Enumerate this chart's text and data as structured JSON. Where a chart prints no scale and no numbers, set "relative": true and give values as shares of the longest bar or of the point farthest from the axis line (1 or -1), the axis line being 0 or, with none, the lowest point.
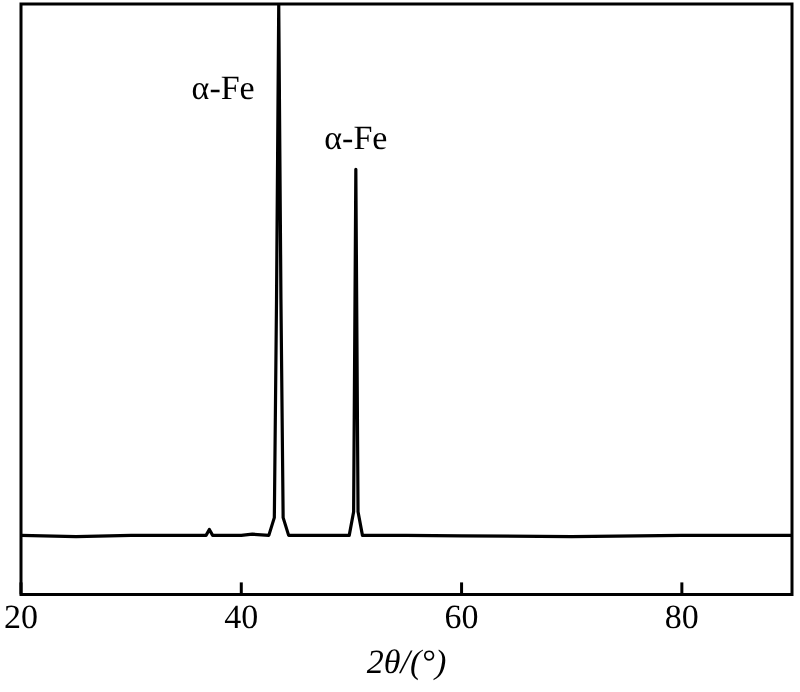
{
  "chart_data": {
    "type": "line",
    "relative": true,
    "xlabel": "2θ/(°)",
    "xlim": [
      20,
      90
    ],
    "xticks": [
      20,
      40,
      60,
      80
    ],
    "grid": false,
    "legend": false,
    "marker": "none",
    "line_style": "solid",
    "series": [
      {
        "color": "#000000",
        "x": [
          20,
          25,
          30,
          35,
          36.8,
          37.1,
          37.4,
          40,
          41,
          42.5,
          43.0,
          43.2,
          43.4,
          43.6,
          43.8,
          44.3,
          47,
          49.8,
          50.2,
          50.4,
          50.6,
          51.0,
          55,
          60,
          70,
          80,
          90
        ],
        "values": [
          0.1,
          0.098,
          0.1,
          0.1,
          0.1,
          0.11,
          0.1,
          0.1,
          0.102,
          0.1,
          0.13,
          0.5,
          1,
          0.5,
          0.13,
          0.1,
          0.1,
          0.1,
          0.14,
          0.72,
          0.14,
          0.1,
          0.1,
          0.099,
          0.098,
          0.1,
          0.1
        ]
      }
    ],
    "annotations": [
      {
        "text": "α-Fe",
        "x": 43.4,
        "y": 1
      },
      {
        "text": "α-Fe",
        "x": 50.4,
        "y": 0.72
      }
    ]
  }
}
